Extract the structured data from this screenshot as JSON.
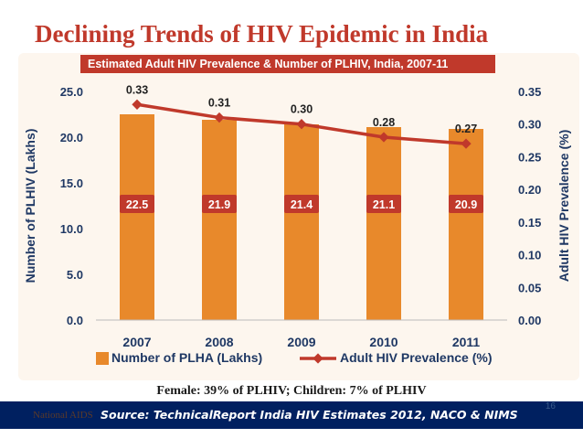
{
  "slide": {
    "title": "Declining Trends of HIV Epidemic in India",
    "footnote": "Female: 39% of PLHIV; Children: 7% of PLHIV",
    "source": "Source: TechnicalReport India HIV Estimates 2012, NACO & NIMS",
    "source_faint": "National AIDS",
    "page_number": "16"
  },
  "colors": {
    "title": "#c0392b",
    "bars": "#e8892b",
    "line": "#c0392b",
    "header": "#c0392b",
    "left_axis": "#1f3864",
    "right_axis": "#1f3864",
    "source_bar": "#002060"
  },
  "chart_data": {
    "type": "bar",
    "title": "Estimated Adult HIV Prevalence & Number of PLHIV, India, 2007-11",
    "categories": [
      "2007",
      "2008",
      "2009",
      "2010",
      "2011"
    ],
    "series": [
      {
        "name": "Number of PLHA (Lakhs)",
        "type": "bar",
        "axis": "left",
        "values": [
          22.5,
          21.9,
          21.4,
          21.1,
          20.9
        ],
        "labels": [
          "22.5",
          "21.9",
          "21.4",
          "21.1",
          "20.9"
        ]
      },
      {
        "name": "Adult HIV Prevalence (%)",
        "type": "line",
        "axis": "right",
        "values": [
          0.33,
          0.31,
          0.3,
          0.28,
          0.27
        ],
        "labels": [
          "0.33",
          "0.31",
          "0.30",
          "0.28",
          "0.27"
        ]
      }
    ],
    "ylabel_left": "Number of PLHIV (Lakhs)",
    "ylabel_right": "Adult HIV Prevalence (%)",
    "ylim_left": [
      0,
      25
    ],
    "ylim_right": [
      0,
      0.35
    ],
    "yticks_left": [
      "0.0",
      "5.0",
      "10.0",
      "15.0",
      "20.0",
      "25.0"
    ],
    "yticks_right": [
      "0.00",
      "0.05",
      "0.10",
      "0.15",
      "0.20",
      "0.25",
      "0.30",
      "0.35"
    ],
    "legend_position": "bottom",
    "grid": false
  }
}
